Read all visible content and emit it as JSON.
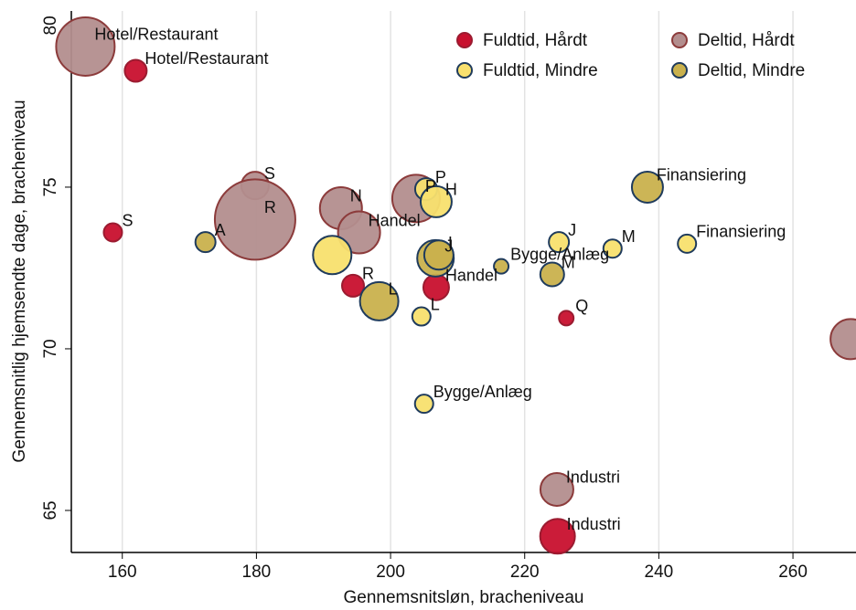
{
  "chart_data": {
    "type": "scatter",
    "xlabel": "Gennemsnitsløn, bracheniveau",
    "ylabel": "Gennemsnitlig hjemsendte dage, bracheniveau",
    "xlim": [
      152.4,
      269.4
    ],
    "ylim": [
      63.7,
      80.45
    ],
    "xticks": [
      160,
      180,
      200,
      220,
      240,
      260
    ],
    "yticks": [
      65,
      70,
      75,
      80
    ],
    "xgrid": true,
    "legend": "upper right",
    "series": [
      {
        "name": "Fuldtid, Hårdt",
        "color": "#c8102e",
        "edgecolor": "#9b1b30",
        "x": [
          162.0,
          158.6,
          194.4,
          206.8,
          226.2,
          224.9
        ],
        "y": [
          78.6,
          73.6,
          71.95,
          71.9,
          70.95,
          64.2
        ],
        "sizes": [
          12,
          10,
          12,
          14,
          8,
          19
        ],
        "labels": [
          "Hotel/Restaurant",
          "S",
          "R",
          "Handel",
          "Q",
          "Industri"
        ]
      },
      {
        "name": "Deltid, Hårdt",
        "color": "#b38e8e",
        "edgecolor": "#8c3b3b",
        "x": [
          154.5,
          179.8,
          179.8,
          192.6,
          195.3,
          203.8,
          224.8,
          268.6
        ],
        "y": [
          79.35,
          75.05,
          74.0,
          74.35,
          73.6,
          74.65,
          65.65,
          70.3
        ],
        "sizes": [
          32,
          15,
          44,
          23,
          23,
          26,
          18,
          22
        ],
        "labels": [
          "Hotel/Restaurant",
          "S",
          "R",
          "N",
          "Handel",
          "P",
          "Industri",
          null
        ]
      },
      {
        "name": "Fuldtid, Mindre",
        "color": "#f8e06e",
        "edgecolor": "#1f3b5c",
        "x": [
          191.3,
          205.3,
          206.8,
          225.1,
          233.1,
          244.2,
          204.6,
          205.0
        ],
        "y": [
          72.9,
          74.94,
          74.55,
          73.3,
          73.1,
          73.25,
          71.0,
          68.3
        ],
        "sizes": [
          21,
          12,
          17,
          11,
          10,
          10,
          10,
          10
        ],
        "labels": [
          null,
          "P",
          "H",
          "J",
          "M",
          "Finansiering",
          "L",
          "Bygge/Anlæg"
        ]
      },
      {
        "name": "Deltid, Mindre",
        "color": "#c9b14d",
        "edgecolor": "#1f3b5c",
        "x": [
          172.4,
          198.3,
          206.7,
          207.2,
          216.5,
          224.1,
          238.3
        ],
        "y": [
          73.3,
          71.47,
          72.8,
          72.9,
          72.55,
          72.3,
          75.0
        ],
        "sizes": [
          11,
          21,
          20,
          16,
          8,
          13,
          17
        ],
        "labels": [
          "A",
          "L",
          "J",
          "I",
          "Bygge/Anlæg",
          "M",
          "Finansiering"
        ]
      }
    ]
  }
}
